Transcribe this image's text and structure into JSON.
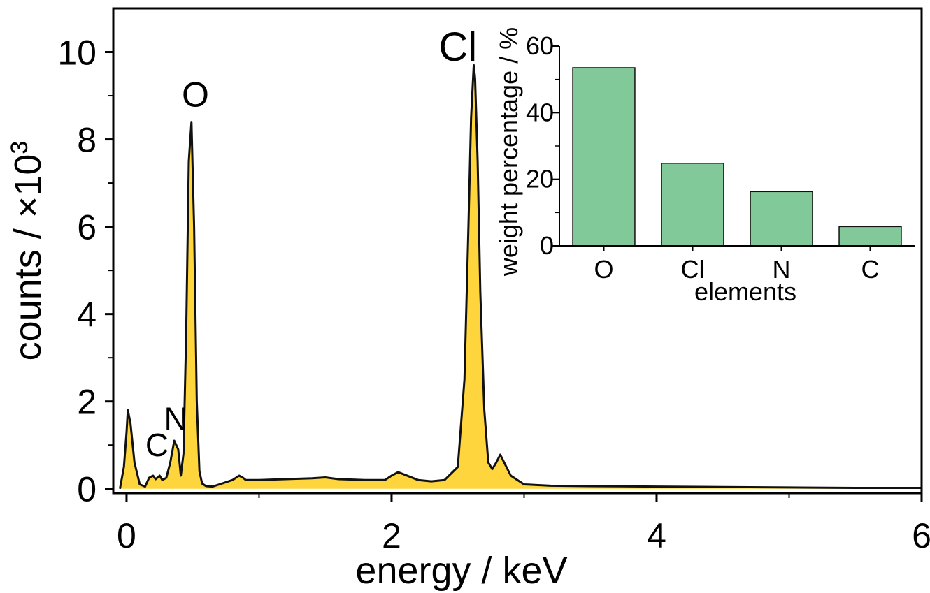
{
  "chart_data": [
    {
      "type": "area",
      "title": "",
      "xlabel": "energy / keV",
      "ylabel": "counts / ×10",
      "ylabel_exponent": "3",
      "xlim": [
        -0.1,
        6
      ],
      "ylim": [
        -0.1,
        11
      ],
      "xticks": [
        "0",
        "2",
        "4",
        "6"
      ],
      "yticks": [
        "0",
        "2",
        "4",
        "6",
        "8",
        "10"
      ],
      "fill_color": "#FFD53D",
      "line_color": "#111111",
      "peak_labels": [
        {
          "text": "C",
          "x": 0.23,
          "y": 0.75
        },
        {
          "text": "N",
          "x": 0.37,
          "y": 1.35
        },
        {
          "text": "O",
          "x": 0.52,
          "y": 8.75
        },
        {
          "text": "Cl",
          "x": 2.5,
          "y": 9.8
        }
      ],
      "spectrum": {
        "x": [
          -0.05,
          -0.02,
          0.0,
          0.01,
          0.03,
          0.06,
          0.1,
          0.14,
          0.17,
          0.2,
          0.22,
          0.25,
          0.27,
          0.3,
          0.33,
          0.36,
          0.39,
          0.41,
          0.43,
          0.45,
          0.47,
          0.49,
          0.51,
          0.53,
          0.55,
          0.57,
          0.6,
          0.65,
          0.7,
          0.8,
          0.85,
          0.88,
          0.9,
          0.95,
          1.0,
          1.2,
          1.4,
          1.5,
          1.6,
          1.8,
          1.95,
          2.0,
          2.05,
          2.1,
          2.2,
          2.3,
          2.4,
          2.5,
          2.55,
          2.58,
          2.6,
          2.62,
          2.63,
          2.65,
          2.67,
          2.7,
          2.73,
          2.76,
          2.79,
          2.82,
          2.85,
          2.9,
          3.0,
          3.2,
          3.5,
          4.0,
          4.5,
          5.0,
          5.5,
          6.0
        ],
        "y": [
          0.0,
          0.5,
          1.3,
          1.8,
          1.5,
          0.6,
          0.1,
          0.05,
          0.25,
          0.3,
          0.22,
          0.3,
          0.2,
          0.25,
          0.6,
          1.1,
          0.9,
          0.3,
          0.8,
          3.5,
          7.5,
          8.4,
          6.0,
          2.0,
          0.4,
          0.12,
          0.06,
          0.05,
          0.1,
          0.2,
          0.3,
          0.25,
          0.2,
          0.2,
          0.2,
          0.22,
          0.24,
          0.26,
          0.22,
          0.2,
          0.2,
          0.3,
          0.38,
          0.32,
          0.2,
          0.17,
          0.2,
          0.5,
          2.5,
          6.0,
          8.5,
          9.7,
          9.4,
          7.5,
          4.5,
          1.8,
          0.6,
          0.45,
          0.6,
          0.78,
          0.6,
          0.3,
          0.1,
          0.07,
          0.06,
          0.05,
          0.04,
          0.03,
          0.02,
          0.02
        ]
      }
    },
    {
      "type": "bar",
      "title": "",
      "xlabel": "elements",
      "ylabel": "weight percentage / %",
      "categories": [
        "O",
        "Cl",
        "N",
        "C"
      ],
      "values": [
        53.5,
        24.8,
        16.3,
        5.8
      ],
      "ylim": [
        0,
        60
      ],
      "yticks": [
        "0",
        "20",
        "40",
        "60"
      ],
      "bar_color": "#82C99A"
    }
  ]
}
